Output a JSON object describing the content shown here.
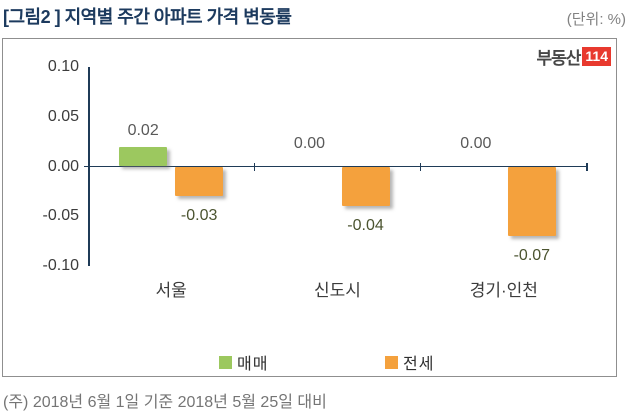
{
  "header": {
    "title": "[그림2 ] 지역별 주간 아파트 가격 변동률",
    "unit_label": "(단위: %)"
  },
  "logo": {
    "text": "부동산",
    "badge": "114"
  },
  "footer": {
    "note": "(주) 2018년 6월 1일 기준 2018년 5월 25일 대비"
  },
  "colors": {
    "title_navy": "#1c3a5e",
    "axis": "#1f3b57",
    "sale_green": "#9cc85f",
    "jeonse_orange": "#f4a13d",
    "logo_red": "#e8392e",
    "positive_label": "#595959",
    "negative_label": "#4b5430"
  },
  "chart_data": {
    "type": "bar",
    "title": "지역별 주간 아파트 가격 변동률",
    "unit": "%",
    "categories": [
      "서울",
      "신도시",
      "경기·인천"
    ],
    "series": [
      {
        "name": "매매",
        "color": "#9cc85f",
        "values": [
          0.02,
          0.0,
          0.0
        ]
      },
      {
        "name": "전세",
        "color": "#f4a13d",
        "values": [
          -0.03,
          -0.04,
          -0.07
        ]
      }
    ],
    "ylim": [
      -0.1,
      0.1
    ],
    "yticks": [
      0.1,
      0.05,
      0.0,
      -0.05,
      -0.1
    ],
    "grid": false,
    "legend_position": "bottom"
  }
}
